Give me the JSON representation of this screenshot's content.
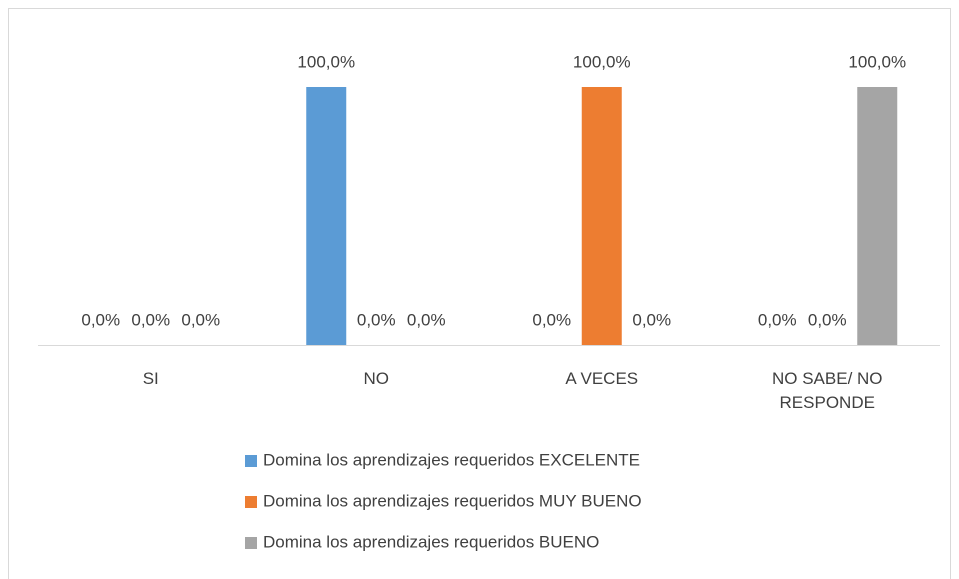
{
  "chart_data": {
    "type": "bar",
    "categories": [
      "SI",
      "NO",
      "A VECES",
      "NO SABE/ NO RESPONDE"
    ],
    "series": [
      {
        "name": "Domina los aprendizajes requeridos EXCELENTE",
        "color": "#5b9bd5",
        "values": [
          0,
          100,
          0,
          0
        ],
        "value_labels": [
          "0,0%",
          "100,0%",
          "0,0%",
          "0,0%"
        ]
      },
      {
        "name": "Domina los aprendizajes requeridos MUY BUENO",
        "color": "#ed7d31",
        "values": [
          0,
          0,
          100,
          0
        ],
        "value_labels": [
          "0,0%",
          "0,0%",
          "100,0%",
          "0,0%"
        ]
      },
      {
        "name": "Domina los aprendizajes requeridos BUENO",
        "color": "#a5a5a5",
        "values": [
          0,
          0,
          0,
          100
        ],
        "value_labels": [
          "0,0%",
          "0,0%",
          "0,0%",
          "100,0%"
        ]
      }
    ],
    "ylim": [
      0,
      100
    ]
  }
}
